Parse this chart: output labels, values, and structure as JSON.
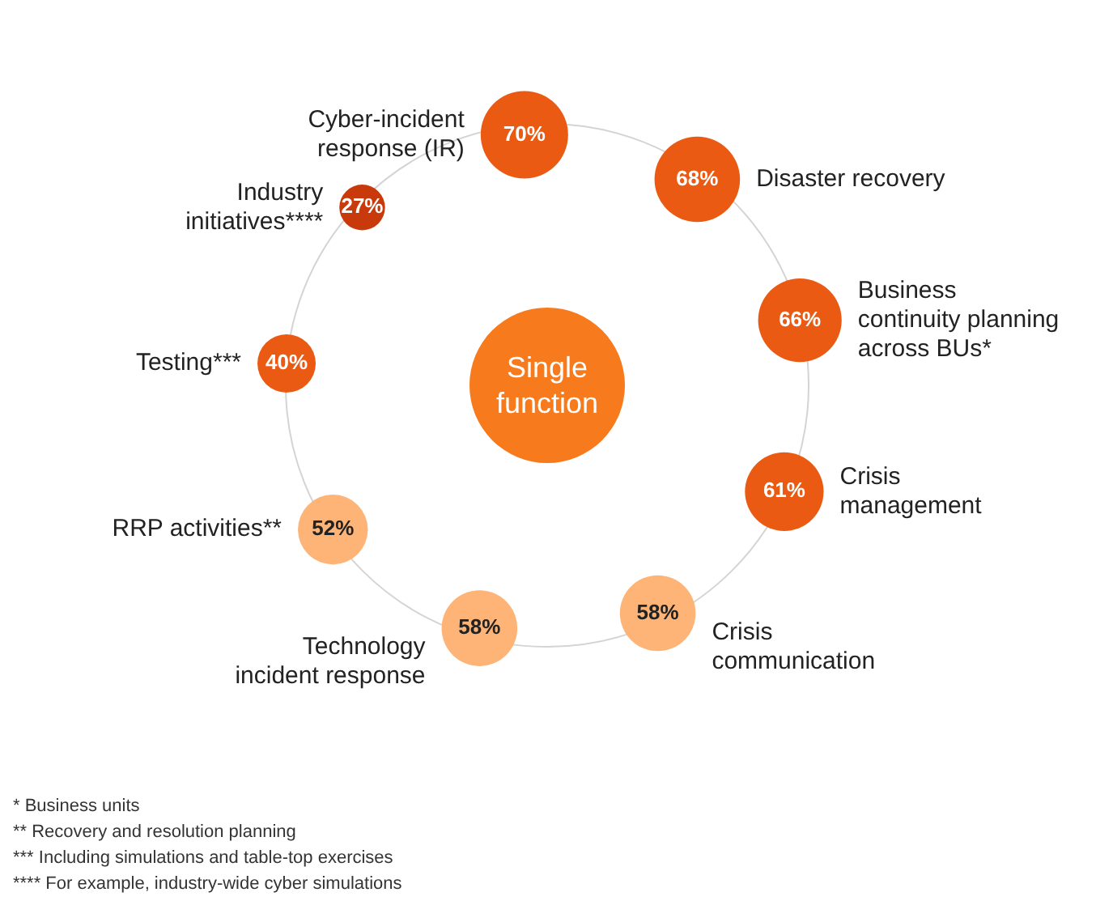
{
  "chart_data": {
    "type": "other",
    "title": "Single function",
    "categories": [
      "Cyber-incident response (IR)",
      "Disaster recovery",
      "Business continuity planning across BUs*",
      "Crisis management",
      "Crisis communication",
      "Technology incident response",
      "RRP activities**",
      "Testing***",
      "Industry initiatives****"
    ],
    "values": [
      70,
      68,
      66,
      61,
      58,
      58,
      52,
      40,
      27
    ],
    "value_labels": [
      "70%",
      "68%",
      "66%",
      "61%",
      "58%",
      "58%",
      "52%",
      "40%",
      "27%"
    ],
    "colors": [
      "#eb5a12",
      "#eb5a12",
      "#eb5a12",
      "#eb5a12",
      "#fdb476",
      "#fdb476",
      "#fdb476",
      "#eb5a12",
      "#c8390b"
    ],
    "annotations": [
      "* Business units",
      "** Recovery and resolution planning",
      "*** Including simulations and table-top exercises",
      "**** For example, industry-wide cyber simulations"
    ]
  }
}
